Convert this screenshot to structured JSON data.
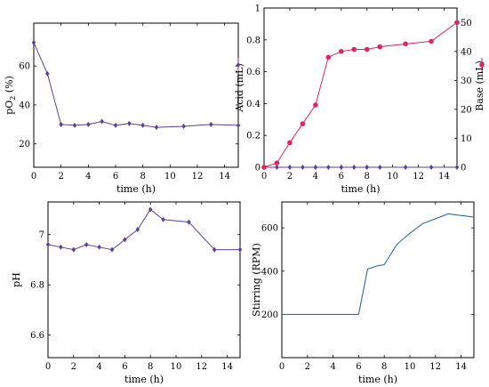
{
  "chart_data": [
    {
      "id": "po2",
      "type": "line",
      "title": "",
      "xlabel": "time (h)",
      "ylabel": "pO",
      "ylabel_sub": "2",
      "ylabel_suffix": " (%)",
      "xlim": [
        0,
        15
      ],
      "ylim": [
        8,
        82
      ],
      "xticks": [
        0,
        2,
        4,
        6,
        8,
        10,
        12,
        14
      ],
      "yticks": [
        20,
        40,
        60
      ],
      "grid": false,
      "color": "#5b3f9a",
      "series": [
        {
          "x": [
            0,
            1,
            2,
            3,
            4,
            5,
            6,
            7,
            8,
            9,
            11,
            13,
            15
          ],
          "y": [
            72,
            56,
            30,
            29.5,
            30,
            31.5,
            29.5,
            30.5,
            29.5,
            28.5,
            29,
            30,
            29.5
          ]
        }
      ]
    },
    {
      "id": "acid-base",
      "type": "line",
      "title": "",
      "xlabel": "time (h)",
      "ylabel": "Acid (mL)",
      "ylabel_right": "Base (mL)",
      "xlim": [
        0,
        15
      ],
      "ylim": [
        0,
        1
      ],
      "ylim_right": [
        0,
        55
      ],
      "xticks": [
        0,
        2,
        4,
        6,
        8,
        10,
        12,
        14
      ],
      "yticks": [
        0,
        0.2,
        0.4,
        0.6,
        0.8,
        1
      ],
      "yticklabels": [
        "0",
        "0.2",
        "0.4",
        "0.6",
        "0.8",
        "1"
      ],
      "yticks_right": [
        0,
        10,
        20,
        30,
        40,
        50
      ],
      "grid": false,
      "legend": "right",
      "series": [
        {
          "name": "Acid (mL)",
          "axis": "left",
          "color": "#5b3f9a",
          "marker": "diamond",
          "x": [
            0,
            1,
            2,
            3,
            4,
            5,
            6,
            7,
            8,
            9,
            11,
            13,
            15
          ],
          "y": [
            0,
            0,
            0,
            0,
            0,
            0,
            0,
            0,
            0,
            0,
            0,
            0,
            0
          ]
        },
        {
          "name": "Base (mL)",
          "axis": "right",
          "color": "#e0245e",
          "marker": "circle",
          "x": [
            0,
            1,
            2,
            3,
            4,
            5,
            6,
            7,
            8,
            9,
            11,
            13,
            15
          ],
          "y": [
            0,
            1.5,
            8.5,
            15,
            21.5,
            38,
            40,
            40.7,
            40.7,
            41.6,
            42.6,
            43.5,
            50
          ]
        }
      ]
    },
    {
      "id": "ph",
      "type": "line",
      "title": "",
      "xlabel": "time (h)",
      "ylabel": "pH",
      "xlim": [
        0,
        15
      ],
      "ylim": [
        6.51,
        7.13
      ],
      "xticks": [
        0,
        2,
        4,
        6,
        8,
        10,
        12,
        14
      ],
      "yticks": [
        6.6,
        6.8,
        7
      ],
      "yticklabels": [
        "6.6",
        "6.8",
        "7"
      ],
      "grid": false,
      "color": "#5b3f9a",
      "series": [
        {
          "x": [
            0,
            1,
            2,
            3,
            4,
            5,
            6,
            7,
            8,
            9,
            11,
            13,
            15
          ],
          "y": [
            6.96,
            6.95,
            6.94,
            6.96,
            6.95,
            6.94,
            6.98,
            7.02,
            7.1,
            7.06,
            7.05,
            6.94,
            6.94
          ]
        }
      ]
    },
    {
      "id": "stirring",
      "type": "line",
      "title": "",
      "xlabel": "time (h)",
      "ylabel": "Stirring (RPM)",
      "xlim": [
        0,
        15
      ],
      "ylim": [
        0,
        720
      ],
      "xticks": [
        0,
        2,
        4,
        6,
        8,
        10,
        12,
        14
      ],
      "yticks": [
        200,
        400,
        600
      ],
      "grid": false,
      "color": "#1f5f8b",
      "series": [
        {
          "x": [
            0,
            6,
            6.7,
            7.5,
            8,
            9,
            10,
            11,
            13,
            15
          ],
          "y": [
            200,
            200,
            410,
            425,
            430,
            525,
            575,
            620,
            665,
            650
          ]
        }
      ]
    }
  ]
}
